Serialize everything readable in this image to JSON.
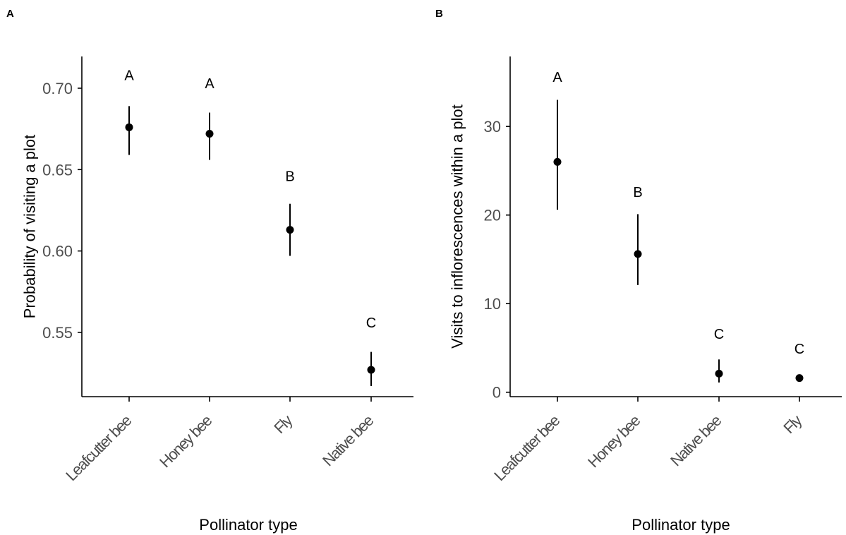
{
  "chart_data": [
    {
      "panel_label": "A",
      "type": "scatter",
      "xlabel": "Pollinator type",
      "ylabel": "Probability of visiting a plot",
      "categories": [
        "Leafcutter bee",
        "Honey bee",
        "Fly",
        "Native bee"
      ],
      "values": [
        0.676,
        0.672,
        0.613,
        0.527
      ],
      "lower": [
        0.659,
        0.656,
        0.597,
        0.517
      ],
      "upper": [
        0.689,
        0.685,
        0.629,
        0.538
      ],
      "letters": [
        "A",
        "A",
        "B",
        "C"
      ],
      "letter_y": [
        0.708,
        0.703,
        0.646,
        0.556
      ],
      "ylim": [
        0.5105,
        0.7195
      ],
      "yticks": [
        0.55,
        0.6,
        0.65,
        0.7
      ],
      "ytick_labels": [
        "0.55",
        "0.60",
        "0.65",
        "0.70"
      ],
      "grid": false
    },
    {
      "panel_label": "B",
      "type": "scatter",
      "xlabel": "Pollinator type",
      "ylabel": "Visits to inflorescences within a plot",
      "categories": [
        "Leafcutter bee",
        "Honey bee",
        "Native bee",
        "Fly"
      ],
      "values": [
        26.0,
        15.6,
        2.1,
        1.6
      ],
      "lower": [
        20.6,
        12.1,
        1.1,
        1.4
      ],
      "upper": [
        33.0,
        20.1,
        3.7,
        1.8
      ],
      "letters": [
        "A",
        "B",
        "C",
        "C"
      ],
      "letter_y": [
        35.6,
        22.6,
        6.6,
        4.9
      ],
      "ylim": [
        -0.5,
        37.9
      ],
      "yticks": [
        0,
        10,
        20,
        30
      ],
      "ytick_labels": [
        "0",
        "10",
        "20",
        "30"
      ],
      "grid": false
    }
  ]
}
